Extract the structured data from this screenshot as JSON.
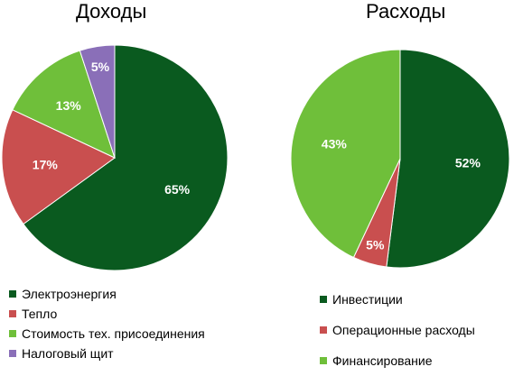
{
  "chart_data": [
    {
      "type": "pie",
      "title": "Доходы",
      "categories": [
        "Электроэнергия",
        "Тепло",
        "Стоимость тех. присоединения",
        "Налоговый щит"
      ],
      "values": [
        65,
        17,
        13,
        5
      ],
      "labels": [
        "65%",
        "17%",
        "13%",
        "5%"
      ],
      "colors": [
        "#0a5a1f",
        "#c94f4f",
        "#6fbf3a",
        "#8a6fb8"
      ],
      "legend_position": "bottom"
    },
    {
      "type": "pie",
      "title": "Расходы",
      "categories": [
        "Инвестиции",
        "Операционные расходы",
        "Финансирование"
      ],
      "values": [
        52,
        5,
        43
      ],
      "labels": [
        "52%",
        "5%",
        "43%"
      ],
      "colors": [
        "#0a5a1f",
        "#c94f4f",
        "#6fbf3a"
      ],
      "legend_position": "bottom"
    }
  ]
}
